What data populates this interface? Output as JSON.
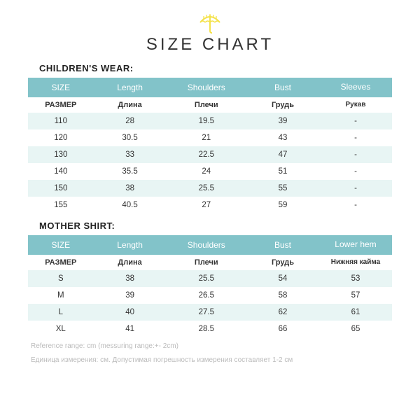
{
  "title": "SIZE CHART",
  "logo_color": "#f4e24a",
  "colors": {
    "header_bg": "#82c3c9",
    "header_text": "#ffffff",
    "row_alt_bg": "#e8f5f4",
    "row_bg": "#ffffff",
    "text": "#333333",
    "footnote": "#bbbbbb"
  },
  "children": {
    "label": "CHILDREN'S WEAR:",
    "columns_en": [
      "SIZE",
      "Length",
      "Shoulders",
      "Bust",
      "Sleeves"
    ],
    "columns_ru": [
      "РАЗМЕР",
      "Длина",
      "Плечи",
      "Грудь",
      "Рукав"
    ],
    "rows": [
      [
        "110",
        "28",
        "19.5",
        "39",
        "-"
      ],
      [
        "120",
        "30.5",
        "21",
        "43",
        "-"
      ],
      [
        "130",
        "33",
        "22.5",
        "47",
        "-"
      ],
      [
        "140",
        "35.5",
        "24",
        "51",
        "-"
      ],
      [
        "150",
        "38",
        "25.5",
        "55",
        "-"
      ],
      [
        "155",
        "40.5",
        "27",
        "59",
        "-"
      ]
    ]
  },
  "mother": {
    "label": "MOTHER SHIRT:",
    "columns_en": [
      "SIZE",
      "Length",
      "Shoulders",
      "Bust",
      "Lower hem"
    ],
    "columns_ru": [
      "РАЗМЕР",
      "Длина",
      "Плечи",
      "Грудь",
      "Нижняя кайма"
    ],
    "rows": [
      [
        "S",
        "38",
        "25.5",
        "54",
        "53"
      ],
      [
        "M",
        "39",
        "26.5",
        "58",
        "57"
      ],
      [
        "L",
        "40",
        "27.5",
        "62",
        "61"
      ],
      [
        "XL",
        "41",
        "28.5",
        "66",
        "65"
      ]
    ]
  },
  "footnote1": "Reference range: cm (messuring range:+- 2cm)",
  "footnote2": "Единица измерения: см. Допустимая погрешность измерения составляет 1-2 см"
}
